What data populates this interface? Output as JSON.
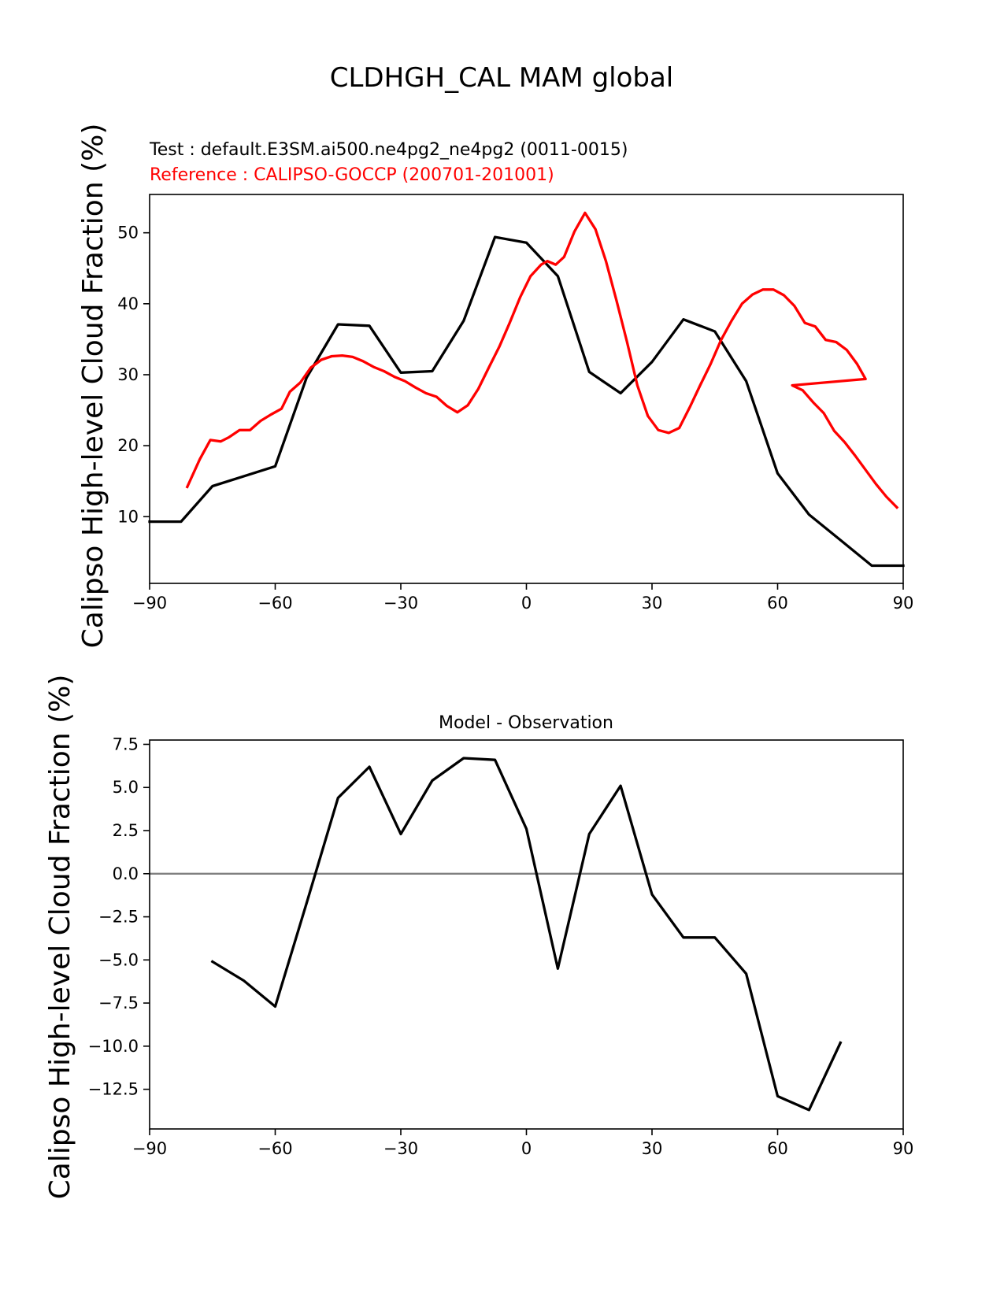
{
  "figure_title": "CLDHGH_CAL MAM global",
  "chart_data": [
    {
      "type": "line",
      "test_label": "Test : default.E3SM.ai500.ne4pg2_ne4pg2 (0011-0015)",
      "reference_label": "Reference : CALIPSO-GOCCP (200701-201001)",
      "ylabel": "Calipso High-level Cloud Fraction (%)",
      "xlim": [
        -90,
        90
      ],
      "ylim": [
        0.6,
        55.4
      ],
      "xticks": [
        -90,
        -60,
        -30,
        0,
        30,
        60,
        90
      ],
      "xtick_labels": [
        "−90",
        "−60",
        "−30",
        "0",
        "30",
        "60",
        "90"
      ],
      "yticks": [
        10,
        20,
        30,
        40,
        50
      ],
      "ytick_labels": [
        "10",
        "20",
        "30",
        "40",
        "50"
      ],
      "grid": false,
      "series": [
        {
          "role": "test",
          "color": "#000000",
          "x": [
            -90,
            -82.5,
            -75,
            -67.5,
            -60,
            -52.5,
            -45,
            -37.5,
            -30,
            -22.5,
            -15,
            -7.5,
            0,
            7.5,
            15,
            22.5,
            30,
            37.5,
            45,
            52.5,
            60,
            67.5,
            75,
            82.5,
            90
          ],
          "y": [
            9.3,
            9.3,
            14.3,
            15.7,
            17.1,
            29.6,
            37.1,
            36.9,
            30.3,
            30.5,
            37.6,
            49.4,
            48.6,
            43.9,
            30.4,
            27.4,
            31.8,
            37.8,
            36.1,
            29.1,
            16.1,
            10.3,
            6.7,
            3.1,
            3.1
          ]
        },
        {
          "role": "reference",
          "color": "#ff0000",
          "x": [
            -81,
            -78,
            -75.5,
            -73,
            -71,
            -68.5,
            -66,
            -63.5,
            -61,
            -58.5,
            -56.5,
            -54,
            -51.5,
            -49,
            -46.5,
            -44,
            -41.5,
            -39,
            -36.5,
            -34,
            -31.5,
            -29,
            -26.5,
            -24,
            -21.5,
            -19,
            -16.5,
            -14,
            -11.5,
            -9,
            -6.5,
            -4,
            -1.5,
            1,
            3.5,
            5,
            7,
            9,
            11.5,
            14,
            16.5,
            19,
            21.5,
            24,
            26.5,
            29,
            31.5,
            34,
            36.5,
            39,
            41.5,
            44,
            46.5,
            49,
            51.5,
            54,
            56.5,
            59,
            61.5,
            64,
            66.5,
            69,
            71.5,
            74,
            76.5,
            79,
            81
          ],
          "y": [
            14.2,
            18.1,
            20.8,
            20.6,
            21.2,
            22.2,
            22.2,
            23.5,
            24.4,
            25.2,
            27.6,
            28.9,
            31.0,
            32.1,
            32.6,
            32.7,
            32.5,
            31.9,
            31.1,
            30.5,
            29.7,
            29.1,
            28.2,
            27.4,
            26.9,
            25.6,
            24.7,
            25.7,
            28.0,
            31.0,
            33.9,
            37.3,
            40.9,
            43.9,
            45.5,
            46.0,
            45.5,
            46.6,
            50.2,
            52.8,
            50.5,
            46.0,
            40.5,
            34.7,
            28.5,
            24.2,
            22.2,
            21.8,
            22.5,
            25.4,
            28.5,
            31.5,
            34.9,
            37.6,
            40.0,
            41.3,
            42.0,
            42.0,
            41.2,
            39.7,
            37.3,
            36.8,
            34.9,
            34.6,
            33.5,
            31.5,
            29.4
          ],
          "y_tail": [
            28.5,
            27.8,
            26.1,
            24.6,
            22.1,
            20.5,
            18.6,
            16.6,
            14.6,
            12.8,
            11.3
          ],
          "x_tail": [
            63.5,
            66,
            68.5,
            71,
            73.5,
            76,
            78.5,
            81,
            83.5,
            86,
            88.5
          ]
        }
      ]
    },
    {
      "type": "line",
      "title": "Model - Observation",
      "ylabel": "Calipso High-level Cloud Fraction (%)",
      "xlim": [
        -90,
        90
      ],
      "ylim": [
        -14.8,
        7.75
      ],
      "xticks": [
        -90,
        -60,
        -30,
        0,
        30,
        60,
        90
      ],
      "xtick_labels": [
        "−90",
        "−60",
        "−30",
        "0",
        "30",
        "60",
        "90"
      ],
      "yticks": [
        7.5,
        5.0,
        2.5,
        0.0,
        -2.5,
        -5.0,
        -7.5,
        -10.0,
        -12.5
      ],
      "ytick_labels": [
        "7.5",
        "5.0",
        "2.5",
        "0.0",
        "−2.5",
        "−5.0",
        "−7.5",
        "−10.0",
        "−12.5"
      ],
      "zero_line_color": "#808080",
      "grid": false,
      "series": [
        {
          "role": "difference",
          "color": "#000000",
          "x": [
            -75,
            -67.5,
            -60,
            -52.5,
            -45,
            -37.5,
            -30,
            -22.5,
            -15,
            -7.5,
            0,
            7.5,
            15,
            22.5,
            30,
            37.5,
            45,
            52.5,
            60,
            67.5,
            75
          ],
          "y": [
            -5.1,
            -6.2,
            -7.7,
            -1.7,
            4.4,
            6.2,
            2.3,
            5.4,
            6.7,
            6.6,
            2.6,
            -5.5,
            2.3,
            5.1,
            -1.2,
            -3.7,
            -3.7,
            -5.8,
            -12.9,
            -13.7,
            -9.8
          ]
        }
      ]
    }
  ]
}
